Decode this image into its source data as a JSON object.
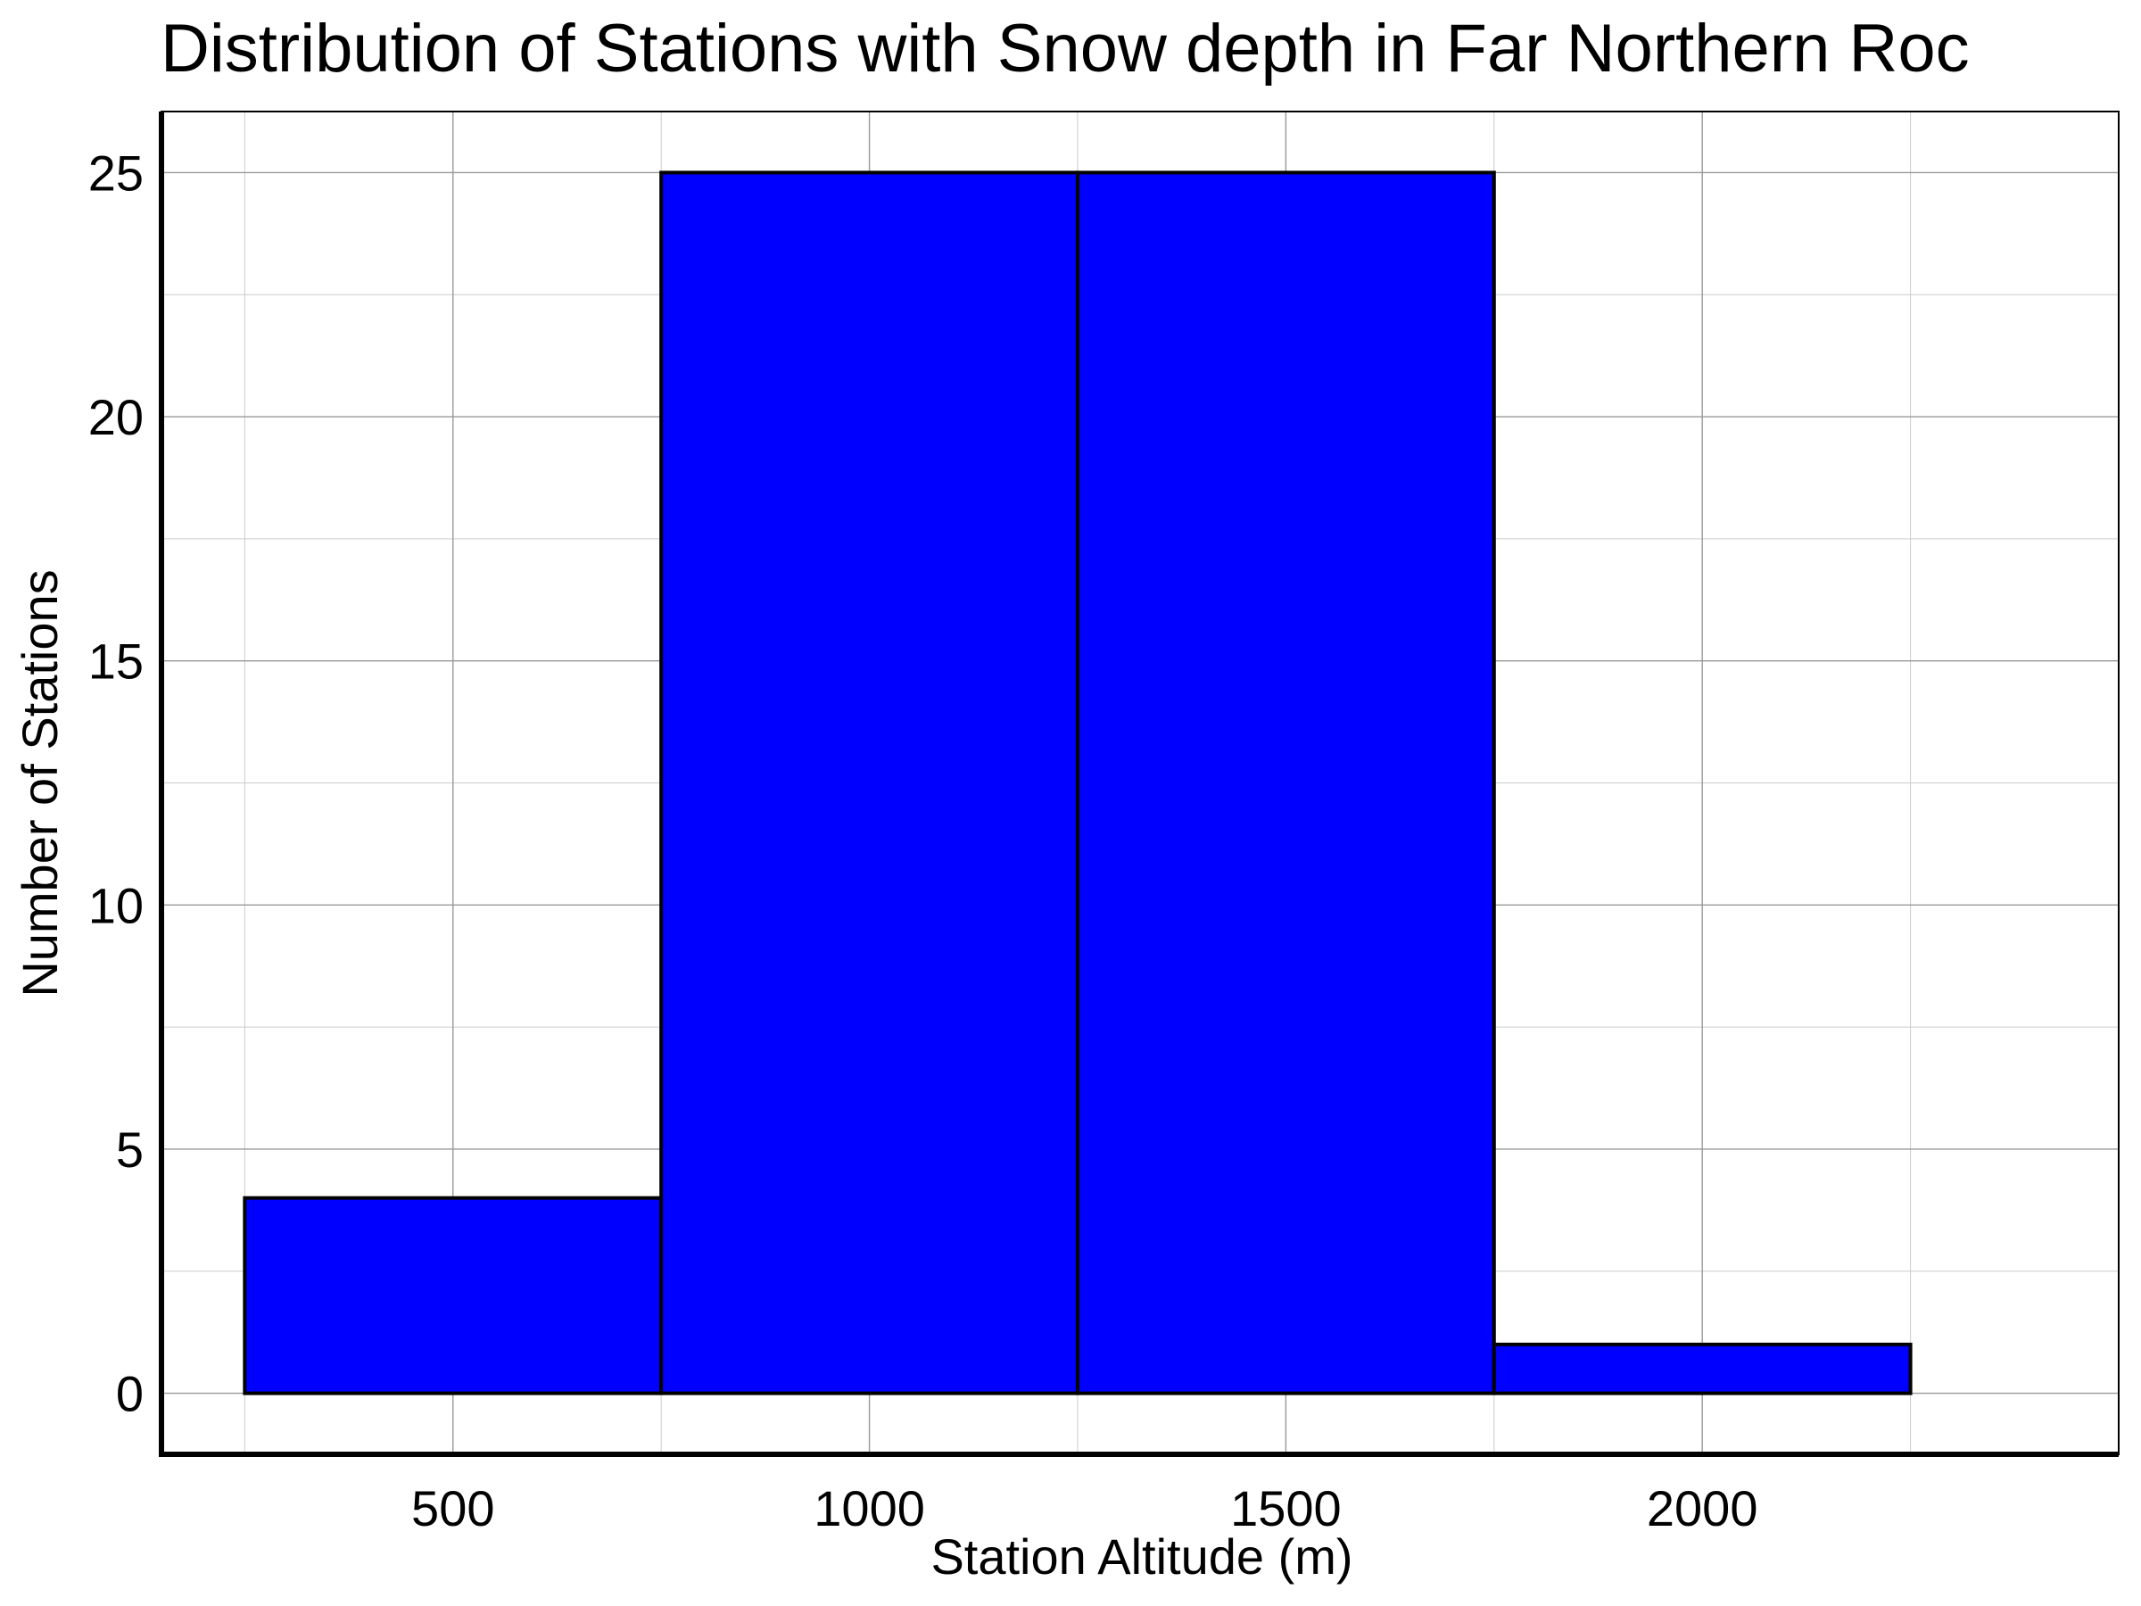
{
  "chart_data": {
    "type": "bar",
    "title": "Distribution of Stations with Snow depth in Far Northern Roc",
    "xlabel": "Station Altitude (m)",
    "ylabel": "Number of Stations",
    "bins": [
      {
        "start": 250,
        "end": 750,
        "count": 4
      },
      {
        "start": 750,
        "end": 1250,
        "count": 25
      },
      {
        "start": 1250,
        "end": 1750,
        "count": 25
      },
      {
        "start": 1750,
        "end": 2250,
        "count": 1
      }
    ],
    "xlim": [
      150,
      2500
    ],
    "ylim": [
      -1.25,
      26.25
    ],
    "x_major_ticks": [
      500,
      1000,
      1500,
      2000
    ],
    "y_major_ticks": [
      0,
      5,
      10,
      15,
      20,
      25
    ],
    "x_tick_labels": [
      "500",
      "1000",
      "1500",
      "2000"
    ],
    "y_tick_labels": [
      "0",
      "5",
      "10",
      "15",
      "20",
      "25"
    ],
    "x_minor_ticks": [
      250,
      750,
      1250,
      1750,
      2250
    ],
    "y_minor_ticks": [
      2.5,
      7.5,
      12.5,
      17.5,
      22.5
    ],
    "grid": true,
    "legend": false,
    "colors": {
      "bar_fill": "#0000ff",
      "bar_edge": "#000000",
      "grid_major": "#999999",
      "grid_minor": "#cccccc"
    }
  }
}
